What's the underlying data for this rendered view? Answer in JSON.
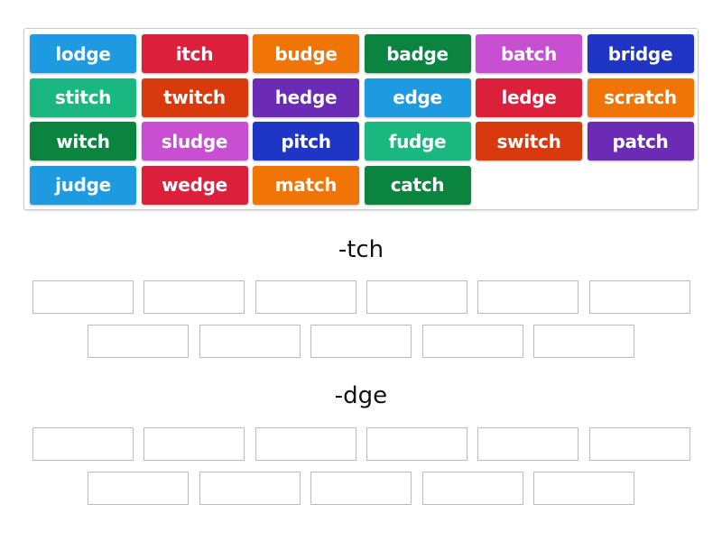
{
  "colors": {
    "blue": "#1e9be0",
    "red": "#dc1f3b",
    "orange": "#f07406",
    "darkgreen": "#0a843e",
    "magenta": "#c84fd1",
    "navy": "#1f35c5",
    "teal": "#1ab780",
    "redorange": "#d8390d",
    "purple": "#6b2bb5"
  },
  "tiles": [
    {
      "label": "lodge",
      "color": "#1e9be0"
    },
    {
      "label": "itch",
      "color": "#dc1f3b"
    },
    {
      "label": "budge",
      "color": "#f07406"
    },
    {
      "label": "badge",
      "color": "#0a843e"
    },
    {
      "label": "batch",
      "color": "#c84fd1"
    },
    {
      "label": "bridge",
      "color": "#1f35c5"
    },
    {
      "label": "stitch",
      "color": "#1ab780"
    },
    {
      "label": "twitch",
      "color": "#d8390d"
    },
    {
      "label": "hedge",
      "color": "#6b2bb5"
    },
    {
      "label": "edge",
      "color": "#1e9be0"
    },
    {
      "label": "ledge",
      "color": "#dc1f3b"
    },
    {
      "label": "scratch",
      "color": "#f07406"
    },
    {
      "label": "witch",
      "color": "#0a843e"
    },
    {
      "label": "sludge",
      "color": "#c84fd1"
    },
    {
      "label": "pitch",
      "color": "#1f35c5"
    },
    {
      "label": "fudge",
      "color": "#1ab780"
    },
    {
      "label": "switch",
      "color": "#d8390d"
    },
    {
      "label": "patch",
      "color": "#6b2bb5"
    },
    {
      "label": "judge",
      "color": "#1e9be0"
    },
    {
      "label": "wedge",
      "color": "#dc1f3b"
    },
    {
      "label": "match",
      "color": "#f07406"
    },
    {
      "label": "catch",
      "color": "#0a843e"
    }
  ],
  "groups": [
    {
      "title": "-tch",
      "slots": 11
    },
    {
      "title": "-dge",
      "slots": 11
    }
  ]
}
